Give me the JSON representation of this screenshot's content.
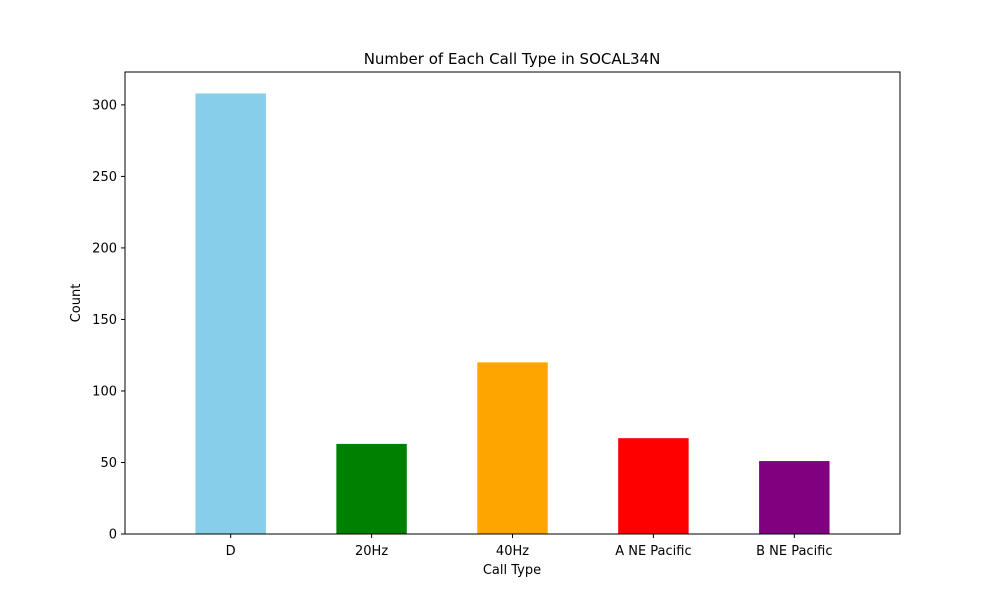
{
  "chart_data": {
    "type": "bar",
    "title": "Number of Each Call Type in SOCAL34N",
    "xlabel": "Call Type",
    "ylabel": "Count",
    "categories": [
      "D",
      "20Hz",
      "40Hz",
      "A NE Pacific",
      "B NE Pacific"
    ],
    "values": [
      308,
      63,
      120,
      67,
      51
    ],
    "colors": [
      "#87ceeb",
      "#008000",
      "#ffa500",
      "#ff0000",
      "#800080"
    ],
    "ylim": [
      0,
      323
    ],
    "yticks": [
      0,
      50,
      100,
      150,
      200,
      250,
      300
    ],
    "grid": false,
    "legend": "none"
  }
}
